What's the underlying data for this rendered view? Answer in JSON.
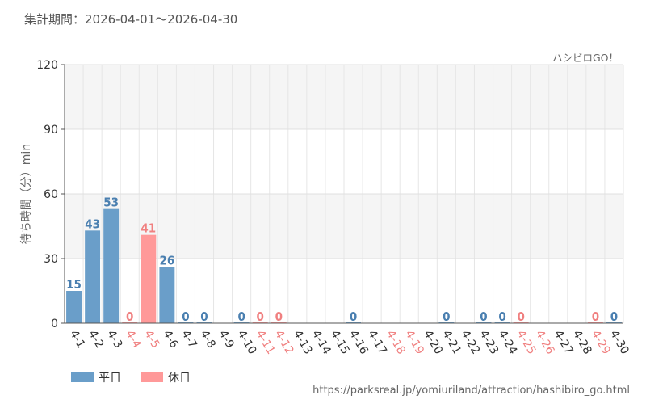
{
  "period_text": "集計期間：2026-04-01～2026-04-30",
  "source_text": "ハシビロGO！",
  "url_text": "https://parksreal.jp/yomiuriland/attraction/hashibiro_go.html",
  "colors": {
    "weekday": "#6a9ec9",
    "holiday": "#ff9999",
    "weekday_label": "#4a7fb0",
    "holiday_label": "#f08080",
    "tick_weekday": "#333333",
    "tick_holiday": "#f08080"
  },
  "chart_data": {
    "type": "bar",
    "title": "",
    "xlabel": "",
    "ylabel": "待ち時間（分）min",
    "ylim": [
      0,
      120
    ],
    "yticks": [
      0,
      30,
      60,
      90,
      120
    ],
    "grid": true,
    "legend_position": "bottom-left",
    "categories": [
      "4-1",
      "4-2",
      "4-3",
      "4-4",
      "4-5",
      "4-6",
      "4-7",
      "4-8",
      "4-9",
      "4-10",
      "4-11",
      "4-12",
      "4-13",
      "4-14",
      "4-15",
      "4-16",
      "4-17",
      "4-18",
      "4-19",
      "4-20",
      "4-21",
      "4-22",
      "4-23",
      "4-24",
      "4-25",
      "4-26",
      "4-27",
      "4-28",
      "4-29",
      "4-30"
    ],
    "day_type": [
      "weekday",
      "weekday",
      "weekday",
      "holiday",
      "holiday",
      "weekday",
      "weekday",
      "weekday",
      "weekday",
      "weekday",
      "holiday",
      "holiday",
      "weekday",
      "weekday",
      "weekday",
      "weekday",
      "weekday",
      "holiday",
      "holiday",
      "weekday",
      "weekday",
      "weekday",
      "weekday",
      "weekday",
      "holiday",
      "holiday",
      "weekday",
      "weekday",
      "holiday",
      "weekday"
    ],
    "values": [
      15,
      43,
      53,
      0,
      41,
      26,
      0,
      0,
      null,
      0,
      0,
      0,
      null,
      null,
      null,
      0,
      null,
      null,
      null,
      null,
      0,
      null,
      0,
      0,
      0,
      null,
      null,
      null,
      0,
      0
    ],
    "series": [
      {
        "name": "平日",
        "type": "weekday"
      },
      {
        "name": "休日",
        "type": "holiday"
      }
    ]
  }
}
